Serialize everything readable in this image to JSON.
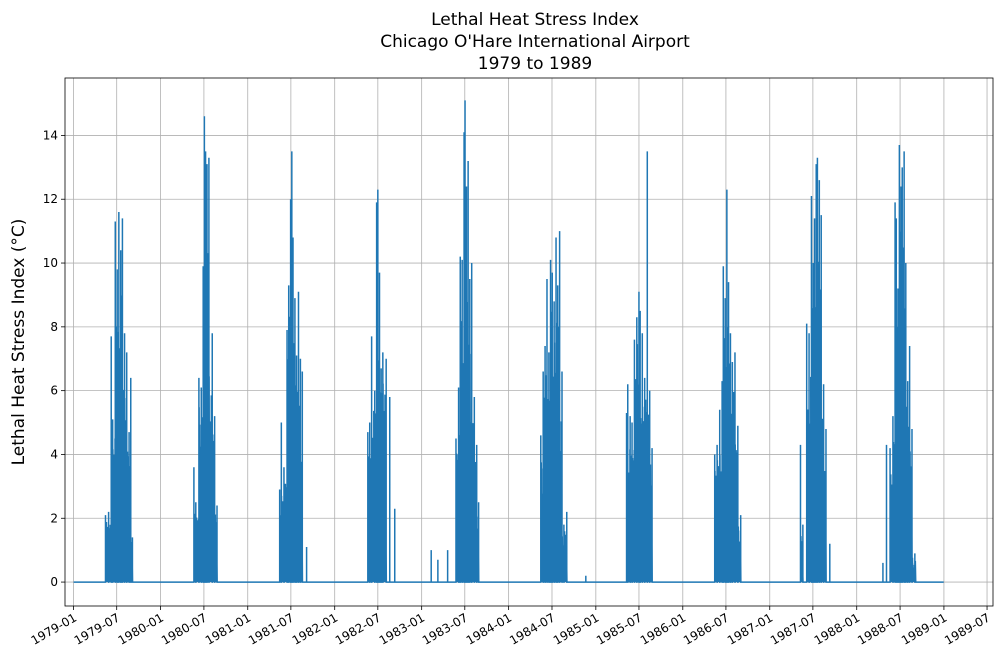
{
  "chart_data": {
    "type": "line",
    "title_lines": [
      "Lethal Heat Stress Index",
      "Chicago O'Hare International Airport",
      "1979 to 1989"
    ],
    "xlabel": "",
    "ylabel": "Lethal Heat Stress Index ($^\\circ$C)",
    "ylabel_display": "Lethal Heat Stress Index (°C)",
    "grid": true,
    "legend": "none",
    "series_color": "#1f77b4",
    "xlim": [
      "1978-11-26",
      "1989-07-26"
    ],
    "ylim": [
      -0.75,
      15.8
    ],
    "x_ticks": [
      "1979-01",
      "1979-07",
      "1980-01",
      "1980-07",
      "1981-01",
      "1981-07",
      "1982-01",
      "1982-07",
      "1983-01",
      "1983-07",
      "1984-01",
      "1984-07",
      "1985-01",
      "1985-07",
      "1986-01",
      "1986-07",
      "1987-01",
      "1987-07",
      "1988-01",
      "1988-07",
      "1989-01",
      "1989-07"
    ],
    "y_ticks": [
      0,
      2,
      4,
      6,
      8,
      10,
      12,
      14
    ],
    "x_range": [
      "1979-01-01",
      "1988-12-31"
    ],
    "summer_peaks": [
      {
        "year": 1979,
        "peaks": [
          [
            "1979-05-15",
            2.1
          ],
          [
            "1979-05-28",
            2.2
          ],
          [
            "1979-06-08",
            7.7
          ],
          [
            "1979-06-14",
            5.1
          ],
          [
            "1979-06-25",
            11.3
          ],
          [
            "1979-07-03",
            9.8
          ],
          [
            "1979-07-10",
            11.6
          ],
          [
            "1979-07-18",
            10.4
          ],
          [
            "1979-07-25",
            11.4
          ],
          [
            "1979-08-03",
            7.8
          ],
          [
            "1979-08-12",
            7.2
          ],
          [
            "1979-08-22",
            4.7
          ],
          [
            "1979-08-29",
            6.4
          ],
          [
            "1979-09-05",
            1.4
          ]
        ]
      },
      {
        "year": 1980,
        "peaks": [
          [
            "1980-05-20",
            3.6
          ],
          [
            "1980-05-28",
            2.5
          ],
          [
            "1980-06-10",
            6.4
          ],
          [
            "1980-06-20",
            6.1
          ],
          [
            "1980-06-28",
            9.9
          ],
          [
            "1980-07-03",
            14.6
          ],
          [
            "1980-07-08",
            13.5
          ],
          [
            "1980-07-14",
            13.1
          ],
          [
            "1980-07-22",
            13.3
          ],
          [
            "1980-08-05",
            7.8
          ],
          [
            "1980-08-15",
            5.2
          ],
          [
            "1980-08-25",
            2.4
          ]
        ]
      },
      {
        "year": 1981,
        "peaks": [
          [
            "1981-05-15",
            2.9
          ],
          [
            "1981-05-22",
            5.0
          ],
          [
            "1981-06-02",
            3.6
          ],
          [
            "1981-06-15",
            7.9
          ],
          [
            "1981-06-22",
            9.3
          ],
          [
            "1981-06-30",
            12.0
          ],
          [
            "1981-07-05",
            13.5
          ],
          [
            "1981-07-10",
            10.8
          ],
          [
            "1981-07-18",
            8.9
          ],
          [
            "1981-07-25",
            7.1
          ],
          [
            "1981-08-02",
            9.1
          ],
          [
            "1981-08-10",
            7.0
          ],
          [
            "1981-08-18",
            6.6
          ],
          [
            "1981-09-05",
            1.1
          ]
        ]
      },
      {
        "year": 1982,
        "peaks": [
          [
            "1982-05-20",
            4.7
          ],
          [
            "1982-05-28",
            5.0
          ],
          [
            "1982-06-05",
            7.7
          ],
          [
            "1982-06-18",
            6.0
          ],
          [
            "1982-06-26",
            11.9
          ],
          [
            "1982-07-01",
            12.3
          ],
          [
            "1982-07-08",
            9.7
          ],
          [
            "1982-07-15",
            6.7
          ],
          [
            "1982-07-22",
            7.2
          ],
          [
            "1982-08-05",
            7.0
          ],
          [
            "1982-08-20",
            5.8
          ],
          [
            "1982-09-10",
            2.3
          ]
        ]
      },
      {
        "year": 1983,
        "peaks": [
          [
            "1983-02-10",
            1.0
          ],
          [
            "1983-03-10",
            0.7
          ],
          [
            "1983-04-20",
            1.0
          ],
          [
            "1983-05-25",
            4.5
          ],
          [
            "1983-06-05",
            6.1
          ],
          [
            "1983-06-12",
            10.2
          ],
          [
            "1983-06-20",
            10.1
          ],
          [
            "1983-06-28",
            14.1
          ],
          [
            "1983-07-02",
            15.1
          ],
          [
            "1983-07-08",
            12.4
          ],
          [
            "1983-07-15",
            13.2
          ],
          [
            "1983-07-22",
            9.5
          ],
          [
            "1983-07-30",
            10.0
          ],
          [
            "1983-08-10",
            5.8
          ],
          [
            "1983-08-20",
            4.3
          ],
          [
            "1983-08-28",
            2.5
          ]
        ]
      },
      {
        "year": 1984,
        "peaks": [
          [
            "1984-05-15",
            4.6
          ],
          [
            "1984-05-25",
            6.6
          ],
          [
            "1984-06-02",
            7.4
          ],
          [
            "1984-06-10",
            9.5
          ],
          [
            "1984-06-18",
            7.2
          ],
          [
            "1984-06-25",
            10.1
          ],
          [
            "1984-07-02",
            9.7
          ],
          [
            "1984-07-10",
            8.8
          ],
          [
            "1984-07-18",
            10.8
          ],
          [
            "1984-07-25",
            9.3
          ],
          [
            "1984-08-02",
            11.0
          ],
          [
            "1984-08-12",
            6.6
          ],
          [
            "1984-08-20",
            1.8
          ],
          [
            "1984-09-01",
            2.2
          ],
          [
            "1984-11-20",
            0.2
          ]
        ]
      },
      {
        "year": 1985,
        "peaks": [
          [
            "1985-05-10",
            5.3
          ],
          [
            "1985-05-15",
            6.2
          ],
          [
            "1985-05-25",
            5.2
          ],
          [
            "1985-06-02",
            5.0
          ],
          [
            "1985-06-12",
            7.6
          ],
          [
            "1985-06-22",
            8.3
          ],
          [
            "1985-07-01",
            9.1
          ],
          [
            "1985-07-06",
            8.5
          ],
          [
            "1985-07-15",
            7.8
          ],
          [
            "1985-07-25",
            6.4
          ],
          [
            "1985-08-05",
            13.5
          ],
          [
            "1985-08-15",
            6.0
          ],
          [
            "1985-08-25",
            4.2
          ]
        ]
      },
      {
        "year": 1986,
        "peaks": [
          [
            "1986-05-15",
            4.0
          ],
          [
            "1986-05-25",
            4.3
          ],
          [
            "1986-06-05",
            5.4
          ],
          [
            "1986-06-15",
            6.3
          ],
          [
            "1986-06-20",
            9.9
          ],
          [
            "1986-06-28",
            8.9
          ],
          [
            "1986-07-05",
            12.3
          ],
          [
            "1986-07-12",
            9.4
          ],
          [
            "1986-07-20",
            7.8
          ],
          [
            "1986-07-28",
            6.9
          ],
          [
            "1986-08-08",
            7.2
          ],
          [
            "1986-08-20",
            4.9
          ],
          [
            "1986-09-01",
            2.1
          ]
        ]
      },
      {
        "year": 1987,
        "peaks": [
          [
            "1987-05-10",
            4.3
          ],
          [
            "1987-05-20",
            1.8
          ],
          [
            "1987-06-05",
            8.1
          ],
          [
            "1987-06-15",
            7.8
          ],
          [
            "1987-06-25",
            12.1
          ],
          [
            "1987-07-02",
            10.0
          ],
          [
            "1987-07-08",
            11.4
          ],
          [
            "1987-07-15",
            13.1
          ],
          [
            "1987-07-20",
            13.3
          ],
          [
            "1987-07-28",
            12.6
          ],
          [
            "1987-08-05",
            11.5
          ],
          [
            "1987-08-15",
            6.2
          ],
          [
            "1987-08-25",
            4.8
          ],
          [
            "1987-09-10",
            1.2
          ]
        ]
      },
      {
        "year": 1988,
        "peaks": [
          [
            "1988-04-20",
            0.6
          ],
          [
            "1988-05-05",
            4.3
          ],
          [
            "1988-05-20",
            4.2
          ],
          [
            "1988-06-01",
            5.2
          ],
          [
            "1988-06-10",
            11.9
          ],
          [
            "1988-06-15",
            11.4
          ],
          [
            "1988-06-22",
            9.2
          ],
          [
            "1988-06-28",
            13.7
          ],
          [
            "1988-07-05",
            12.4
          ],
          [
            "1988-07-10",
            13.0
          ],
          [
            "1988-07-18",
            13.5
          ],
          [
            "1988-07-25",
            10.0
          ],
          [
            "1988-08-02",
            6.3
          ],
          [
            "1988-08-10",
            7.4
          ],
          [
            "1988-08-20",
            4.8
          ],
          [
            "1988-09-01",
            0.9
          ]
        ]
      }
    ]
  }
}
